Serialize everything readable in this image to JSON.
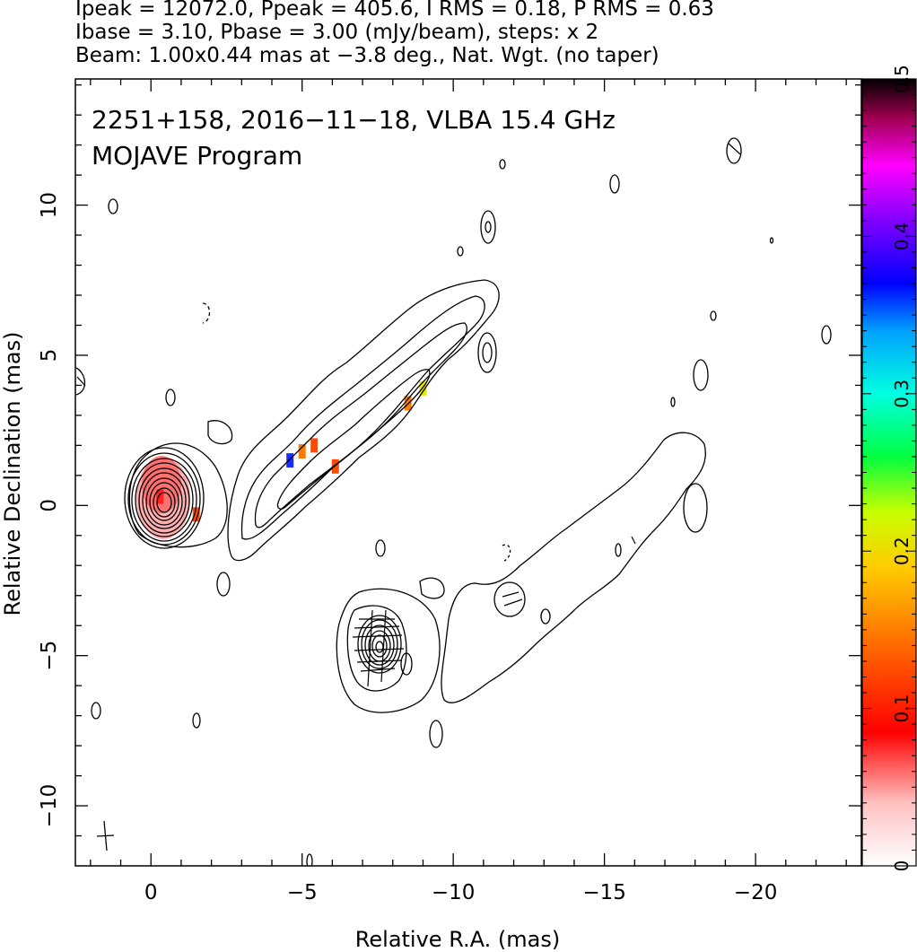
{
  "header": {
    "line1": "Ipeak = 12072.0, Ppeak = 405.6, I RMS = 0.18, P RMS = 0.63",
    "line2": "Ibase = 3.10, Pbase = 3.00 (mJy/beam), steps: x 2",
    "line3": "Beam: 1.00x0.44 mas at −3.8 deg., Nat. Wgt. (no taper)"
  },
  "plot_labels": {
    "title": "2251+158, 2016−11−18, VLBA 15.4 GHz",
    "subtitle": "MOJAVE Program"
  },
  "chart_data": {
    "type": "contour map",
    "xlabel": "Relative R.A. (mas)",
    "ylabel": "Relative Declination (mas)",
    "xlim": [
      2.5,
      -23.5
    ],
    "ylim": [
      -12,
      14.2
    ],
    "xticks": [
      0,
      -5,
      -10,
      -15,
      -20
    ],
    "xtick_labels": [
      "0",
      "−5",
      "−10",
      "−15",
      "−20"
    ],
    "yticks": [
      10,
      5,
      0,
      -5,
      -10
    ],
    "ytick_labels": [
      "10",
      "5",
      "0",
      "−5",
      "−10"
    ],
    "colorbar": {
      "min": 0,
      "max": 0.5,
      "ticks": [
        0,
        0.1,
        0.2,
        0.3,
        0.4,
        0.5
      ],
      "tick_labels": [
        "0",
        "0.1",
        "0.2",
        "0.3",
        "0.4",
        "0.5"
      ],
      "colors": [
        "#ffffff",
        "#ff0000",
        "#ff8c00",
        "#ffff00",
        "#00ff00",
        "#00ffff",
        "#0000ff",
        "#ff00ff",
        "#000000"
      ]
    },
    "core": {
      "x": -0.3,
      "y": 0.2
    },
    "features": [
      {
        "name": "core",
        "x": -0.3,
        "y": 0.2
      },
      {
        "name": "inner jet",
        "x": -5.5,
        "y": 2.5
      },
      {
        "name": "outer knot",
        "x": -7.5,
        "y": -4.8
      },
      {
        "name": "extended jet",
        "x": -14,
        "y": -2
      }
    ],
    "polarization_patches": [
      {
        "x": -0.3,
        "y": 0.3,
        "frac": 0.06
      },
      {
        "x": -1.5,
        "y": -0.3,
        "frac": 0.1
      },
      {
        "x": -4.6,
        "y": 1.5,
        "frac": 0.45
      },
      {
        "x": -5.0,
        "y": 1.8,
        "frac": 0.12
      },
      {
        "x": -5.4,
        "y": 2.0,
        "frac": 0.1
      },
      {
        "x": -6.1,
        "y": 1.3,
        "frac": 0.08
      },
      {
        "x": -8.5,
        "y": 3.4,
        "frac": 0.12
      },
      {
        "x": -9.0,
        "y": 3.9,
        "frac": 0.2
      }
    ]
  }
}
